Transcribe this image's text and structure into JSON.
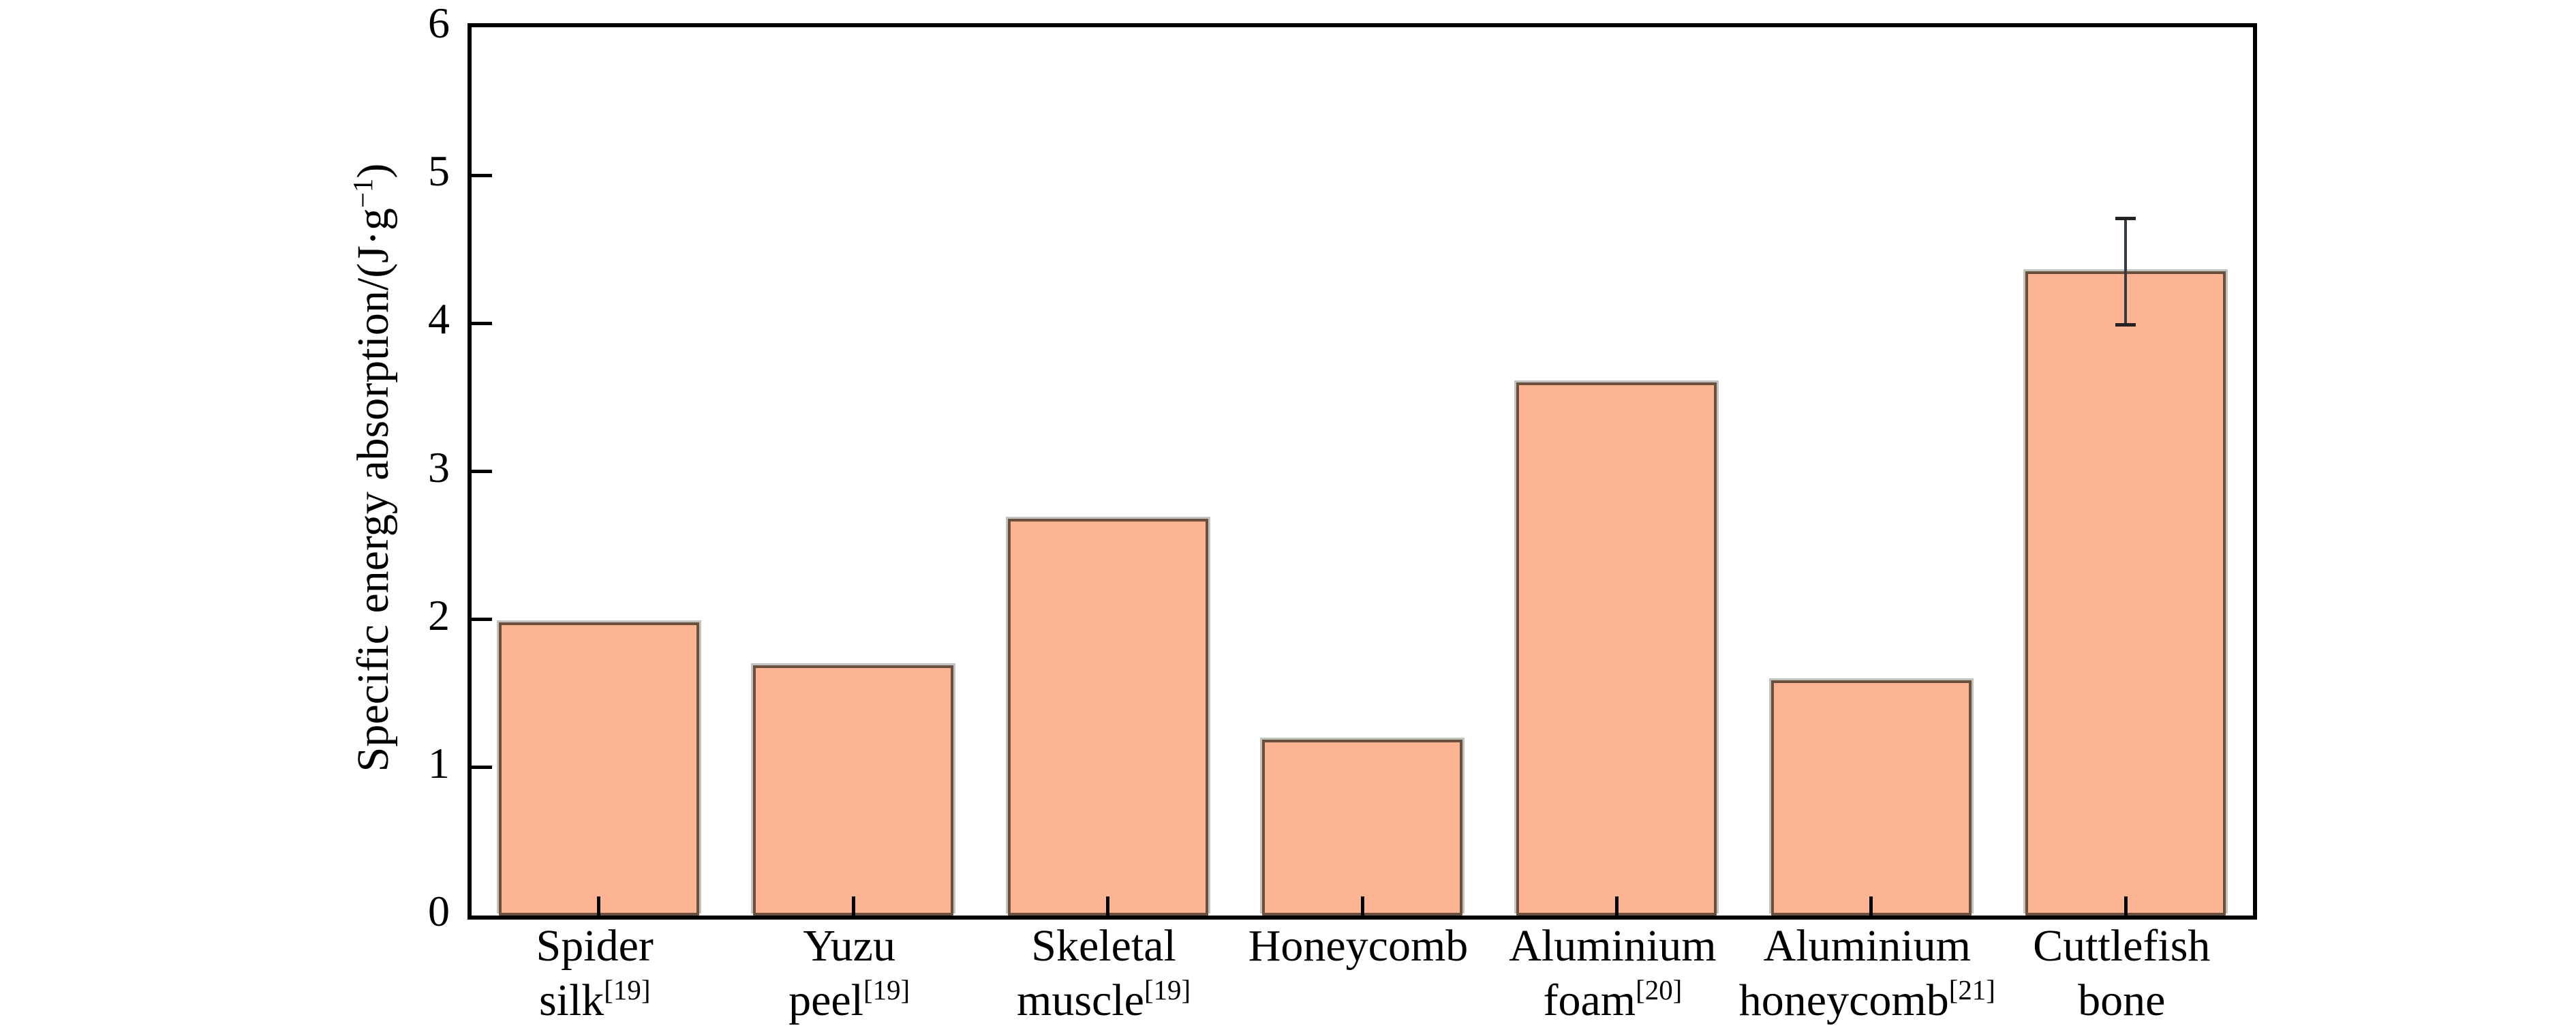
{
  "figure": {
    "type_label": "bar-chart-figure"
  },
  "chart_data": {
    "type": "bar",
    "title": "",
    "xlabel": "",
    "ylabel": {
      "prefix": "Specific energy absorption/(J·g",
      "sup": "−1",
      "suffix": ")"
    },
    "ylabel_plain": "Specific energy absorption/(J·g⁻¹)",
    "ylim": [
      0,
      6
    ],
    "yticks": [
      0,
      1,
      2,
      3,
      4,
      5,
      6
    ],
    "grid": "off",
    "legend": "none",
    "frame": "full-box",
    "categories": [
      {
        "line1": "Spider",
        "line2": "silk",
        "ref": "[19]"
      },
      {
        "line1": "Yuzu",
        "line2": "peel",
        "ref": "[19]"
      },
      {
        "line1": "Skeletal",
        "line2": "muscle",
        "ref": "[19]"
      },
      {
        "line1": "Honeycomb",
        "line2": "",
        "ref": ""
      },
      {
        "line1": "Aluminium",
        "line2": "foam",
        "ref": "[20]"
      },
      {
        "line1": "Aluminium",
        "line2": "honeycomb",
        "ref": "[21]"
      },
      {
        "line1": "Cuttlefish",
        "line2": "bone",
        "ref": ""
      }
    ],
    "values": [
      1.98,
      1.69,
      2.68,
      1.19,
      3.6,
      1.59,
      4.35
    ],
    "error_bars": [
      {
        "index": 6,
        "center": 4.35,
        "upper": 4.72,
        "lower": 3.98
      }
    ],
    "colors": {
      "bar_fill": "#FDB493",
      "bar_edge": "#6B503F",
      "bar_halo": "#BFC4BF",
      "error_bar": "#333B44",
      "axis": "#000000",
      "text": "#000000"
    }
  }
}
